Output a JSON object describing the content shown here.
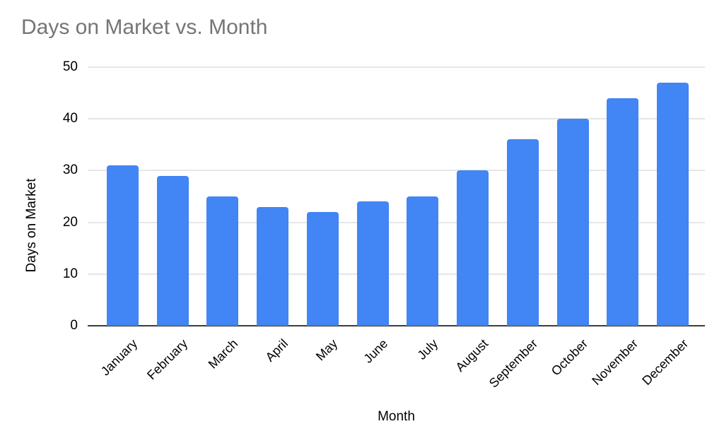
{
  "chart_data": {
    "type": "bar",
    "title": "Days on Market vs. Month",
    "xlabel": "Month",
    "ylabel": "Days on Market",
    "categories": [
      "January",
      "February",
      "March",
      "April",
      "May",
      "June",
      "July",
      "August",
      "September",
      "October",
      "November",
      "December"
    ],
    "values": [
      31,
      29,
      25,
      23,
      22,
      24,
      25,
      30,
      36,
      40,
      44,
      47
    ],
    "ylim": [
      0,
      50
    ],
    "yticks": [
      0,
      10,
      20,
      30,
      40,
      50
    ],
    "grid": true,
    "legend_position": "none",
    "bar_color": "#4285f4"
  },
  "colors": {
    "title_text": "#757575",
    "axis_text": "#000000",
    "gridline": "#e6e6e6",
    "axis_line": "#3c3c3c",
    "background": "#ffffff"
  }
}
